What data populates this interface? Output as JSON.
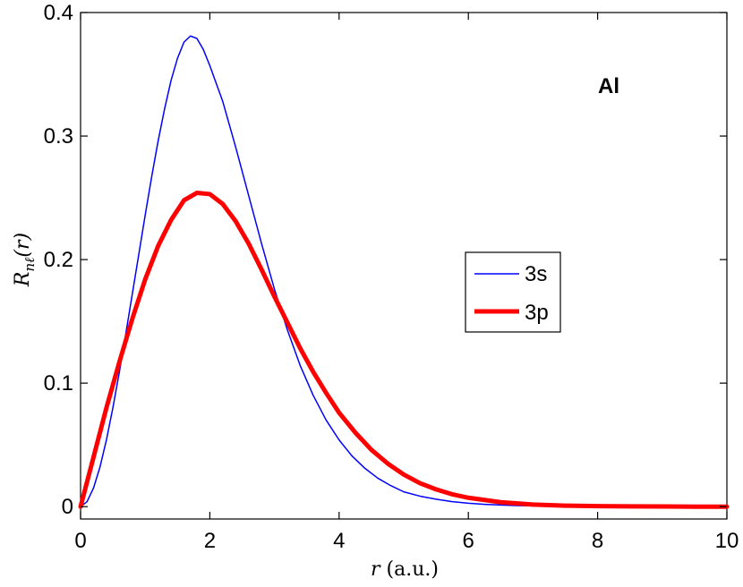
{
  "chart_data": {
    "type": "line",
    "title": "",
    "xlabel": "r (a.u.)",
    "ylabel": "R_nℓ(r)",
    "xlim": [
      0,
      10
    ],
    "ylim": [
      -0.01,
      0.4
    ],
    "xticks": [
      0,
      2,
      4,
      6,
      8,
      10
    ],
    "xtick_labels": [
      "0",
      "2",
      "4",
      "6",
      "8",
      "10"
    ],
    "yticks": [
      0,
      0.1,
      0.2,
      0.3,
      0.4
    ],
    "ytick_labels": [
      "0",
      "0.1",
      "0.2",
      "0.3",
      "0.4"
    ],
    "grid": false,
    "legend_position": "center-right",
    "annotation": "Al",
    "series": [
      {
        "name": "3s",
        "color": "#0000ff",
        "x": [
          0,
          0.1,
          0.2,
          0.3,
          0.4,
          0.5,
          0.6,
          0.7,
          0.8,
          0.9,
          1.0,
          1.1,
          1.2,
          1.3,
          1.4,
          1.5,
          1.6,
          1.7,
          1.8,
          1.9,
          2.0,
          2.2,
          2.4,
          2.6,
          2.8,
          3.0,
          3.2,
          3.4,
          3.6,
          3.8,
          4.0,
          4.2,
          4.4,
          4.6,
          4.8,
          5.0,
          5.25,
          5.5,
          5.75,
          6.0,
          6.25,
          6.5,
          6.75,
          7.0,
          7.5,
          8.0,
          8.5,
          9.0,
          9.5,
          10.0
        ],
        "y": [
          0,
          0.004,
          0.015,
          0.032,
          0.054,
          0.08,
          0.109,
          0.14,
          0.172,
          0.204,
          0.236,
          0.267,
          0.296,
          0.322,
          0.345,
          0.363,
          0.376,
          0.381,
          0.379,
          0.37,
          0.357,
          0.328,
          0.291,
          0.252,
          0.213,
          0.176,
          0.143,
          0.114,
          0.09,
          0.07,
          0.054,
          0.041,
          0.031,
          0.023,
          0.017,
          0.012,
          0.0085,
          0.006,
          0.004,
          0.0028,
          0.0019,
          0.0013,
          0.0009,
          0.0006,
          0.0003,
          0.0001,
          0.0,
          0.0,
          0.0,
          0.0
        ]
      },
      {
        "name": "3p",
        "color": "#ff0000",
        "x": [
          0,
          0.2,
          0.4,
          0.6,
          0.8,
          1.0,
          1.2,
          1.4,
          1.6,
          1.8,
          2.0,
          2.2,
          2.4,
          2.6,
          2.8,
          3.0,
          3.2,
          3.4,
          3.6,
          3.8,
          4.0,
          4.25,
          4.5,
          4.75,
          5.0,
          5.25,
          5.5,
          5.75,
          6.0,
          6.5,
          7.0,
          7.5,
          8.0,
          8.5,
          9.0,
          9.5,
          10.0
        ],
        "y": [
          0,
          0.04,
          0.08,
          0.117,
          0.152,
          0.184,
          0.211,
          0.232,
          0.248,
          0.254,
          0.253,
          0.245,
          0.231,
          0.213,
          0.192,
          0.17,
          0.149,
          0.128,
          0.109,
          0.092,
          0.076,
          0.06,
          0.046,
          0.035,
          0.026,
          0.019,
          0.014,
          0.01,
          0.0072,
          0.0036,
          0.0017,
          0.0008,
          0.0004,
          0.0002,
          0.0001,
          0.0,
          0.0
        ]
      }
    ]
  }
}
